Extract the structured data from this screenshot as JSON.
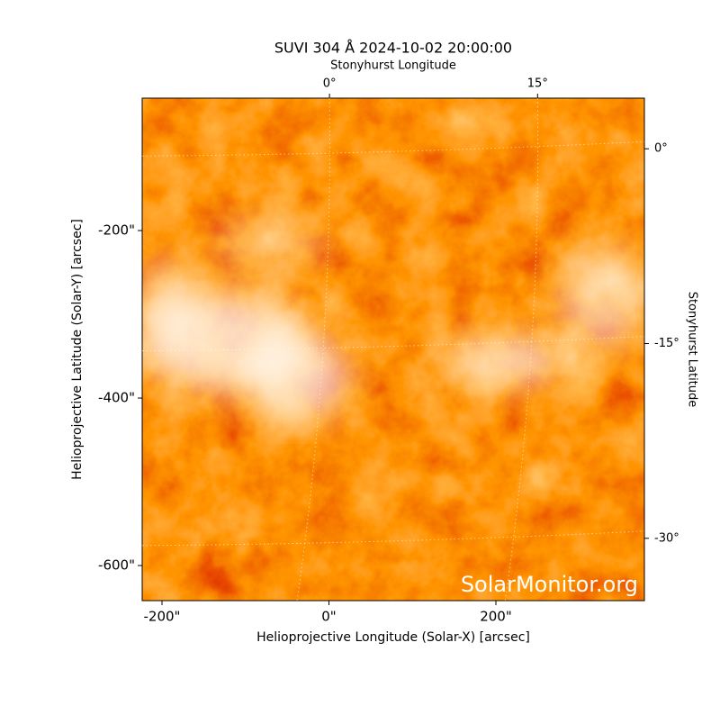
{
  "chart_data": {
    "type": "image",
    "title": "SUVI 304 Å 2024-10-02 20:00:00",
    "xlabel": "Helioprojective Longitude (Solar-X) [arcsec]",
    "ylabel": "Helioprojective Latitude (Solar-Y) [arcsec]",
    "x2label": "Stonyhurst Longitude",
    "y2label": "Stonyhurst Latitude",
    "watermark": "SolarMonitor.org",
    "xlim": [
      -223.7,
      377.9
    ],
    "ylim": [
      -641.9,
      -41.9
    ],
    "xticks": [
      {
        "value": -200,
        "label": "-200\""
      },
      {
        "value": 0,
        "label": "0\""
      },
      {
        "value": 200,
        "label": "200\""
      }
    ],
    "yticks": [
      {
        "value": -200,
        "label": "-200\""
      },
      {
        "value": -400,
        "label": "-400\""
      },
      {
        "value": -600,
        "label": "-600\""
      }
    ],
    "x2lim": [
      -13.5,
      22.7
    ],
    "x2ticks": [
      {
        "value": 0,
        "label": "0°"
      },
      {
        "value": 15,
        "label": "15°"
      }
    ],
    "y2lim": [
      -34.8,
      3.9
    ],
    "y2ticks": [
      {
        "value": 0,
        "label": "0°"
      },
      {
        "value": -15,
        "label": "-15°"
      },
      {
        "value": -30,
        "label": "-30°"
      }
    ],
    "grid": true
  }
}
